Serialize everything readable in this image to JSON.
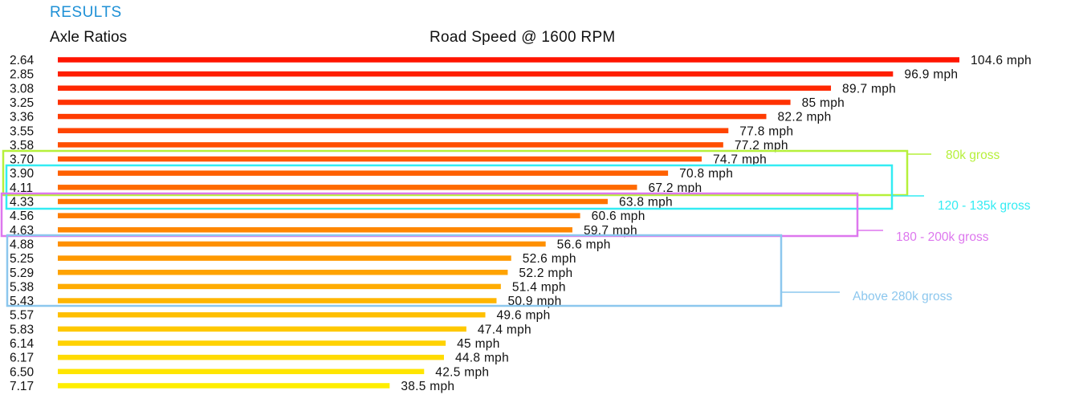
{
  "page": {
    "section_title": "RESULTS",
    "left_header": "Axle Ratios",
    "center_header": "Road Speed @ 1600 RPM"
  },
  "chart_data": {
    "type": "bar",
    "orientation": "horizontal",
    "title": "Road Speed @ 1600 RPM",
    "ylabel": "Axle Ratios",
    "categories": [
      "2.64",
      "2.85",
      "3.08",
      "3.25",
      "3.36",
      "3.55",
      "3.58",
      "3.70",
      "3.90",
      "4.11",
      "4.33",
      "4.56",
      "4.63",
      "4.88",
      "5.25",
      "5.29",
      "5.38",
      "5.43",
      "5.57",
      "5.83",
      "6.14",
      "6.17",
      "6.50",
      "7.17"
    ],
    "values": [
      104.6,
      96.9,
      89.7,
      85,
      82.2,
      77.8,
      77.2,
      74.7,
      70.8,
      67.2,
      63.8,
      60.6,
      59.7,
      56.6,
      52.6,
      52.2,
      51.4,
      50.9,
      49.6,
      47.4,
      45,
      44.8,
      42.5,
      38.5
    ],
    "value_labels": [
      "104.6 mph",
      "96.9 mph",
      "89.7 mph",
      "85 mph",
      "82.2 mph",
      "77.8 mph",
      "77.2 mph",
      "74.7 mph",
      "70.8 mph",
      "67.2 mph",
      "63.8 mph",
      "60.6 mph",
      "59.7 mph",
      "56.6 mph",
      "52.6 mph",
      "52.2 mph",
      "51.4 mph",
      "50.9 mph",
      "49.6 mph",
      "47.4 mph",
      "45 mph",
      "44.8 mph",
      "42.5 mph",
      "38.5 mph"
    ],
    "unit": "mph",
    "xlim": [
      0,
      104.6
    ],
    "colors": {
      "start": "#ff1500",
      "end": "#ffee00"
    },
    "bands": [
      {
        "label": "80k gross",
        "color": "#b6f03a",
        "from": "3.70",
        "to": "4.11"
      },
      {
        "label": "120 - 135k gross",
        "color": "#33ecf3",
        "from": "3.90",
        "to": "4.33"
      },
      {
        "label": "180 - 200k gross",
        "color": "#dd77ee",
        "from": "4.33",
        "to": "4.63"
      },
      {
        "label": "Above 280k gross",
        "color": "#8cc7ee",
        "from": "4.88",
        "to": "5.43"
      }
    ]
  }
}
